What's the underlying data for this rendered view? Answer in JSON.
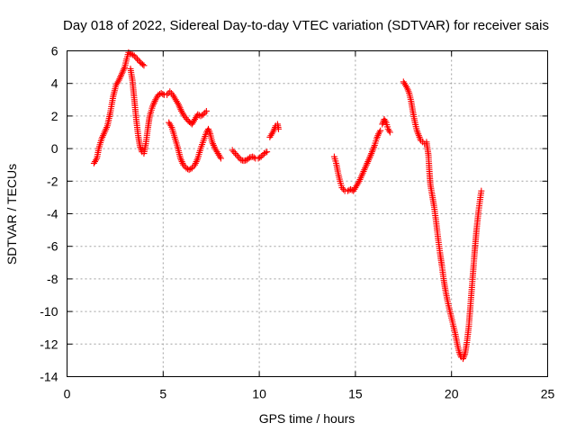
{
  "chart_data": {
    "type": "scatter",
    "title": "Day 018 of 2022, Sidereal Day-to-day VTEC variation (SDTVAR) for receiver sais",
    "xlabel": "GPS time / hours",
    "ylabel": "SDTVAR / TECUs",
    "xlim": [
      0,
      25
    ],
    "ylim": [
      -14,
      6
    ],
    "xticks": [
      0,
      5,
      10,
      15,
      20,
      25
    ],
    "yticks": [
      -14,
      -12,
      -10,
      -8,
      -6,
      -4,
      -2,
      0,
      2,
      4,
      6
    ],
    "xtick_labels": [
      "0",
      "5",
      "10",
      "15",
      "20",
      "25"
    ],
    "ytick_labels": [
      "-14",
      "-12",
      "-10",
      "-8",
      "-6",
      "-4",
      "-2",
      "0",
      "2",
      "4",
      "6"
    ],
    "grid": true,
    "legend": "none",
    "marker": "plus",
    "color": "#ff0000",
    "segments": [
      [
        [
          1.4,
          -0.9
        ],
        [
          1.55,
          -0.6
        ],
        [
          1.65,
          0.0
        ],
        [
          1.8,
          0.6
        ],
        [
          1.95,
          1.0
        ],
        [
          2.1,
          1.4
        ],
        [
          2.25,
          2.2
        ],
        [
          2.4,
          3.2
        ],
        [
          2.55,
          3.9
        ],
        [
          2.7,
          4.2
        ],
        [
          2.85,
          4.6
        ],
        [
          3.0,
          5.0
        ],
        [
          3.1,
          5.5
        ],
        [
          3.2,
          5.9
        ],
        [
          3.35,
          5.8
        ],
        [
          3.5,
          5.7
        ],
        [
          3.65,
          5.5
        ],
        [
          3.8,
          5.3
        ],
        [
          4.0,
          5.1
        ]
      ],
      [
        [
          3.3,
          4.9
        ],
        [
          3.4,
          4.2
        ],
        [
          3.5,
          3.0
        ],
        [
          3.6,
          1.8
        ],
        [
          3.7,
          0.8
        ],
        [
          3.8,
          0.1
        ],
        [
          3.9,
          -0.2
        ],
        [
          4.0,
          -0.3
        ],
        [
          4.1,
          0.3
        ],
        [
          4.2,
          1.2
        ],
        [
          4.3,
          2.0
        ],
        [
          4.45,
          2.6
        ],
        [
          4.6,
          3.0
        ],
        [
          4.75,
          3.3
        ],
        [
          4.9,
          3.4
        ],
        [
          5.05,
          3.3
        ],
        [
          5.2,
          3.3
        ],
        [
          5.35,
          3.5
        ],
        [
          5.5,
          3.3
        ],
        [
          5.65,
          3.0
        ],
        [
          5.8,
          2.7
        ],
        [
          5.95,
          2.3
        ],
        [
          6.1,
          2.0
        ],
        [
          6.3,
          1.7
        ],
        [
          6.5,
          1.5
        ],
        [
          6.65,
          1.8
        ],
        [
          6.8,
          2.1
        ],
        [
          6.95,
          2.0
        ],
        [
          7.1,
          2.1
        ],
        [
          7.25,
          2.3
        ]
      ],
      [
        [
          5.3,
          1.6
        ],
        [
          5.45,
          1.3
        ],
        [
          5.6,
          0.7
        ],
        [
          5.75,
          0.1
        ],
        [
          5.9,
          -0.6
        ],
        [
          6.05,
          -1.0
        ],
        [
          6.2,
          -1.2
        ],
        [
          6.35,
          -1.3
        ],
        [
          6.5,
          -1.2
        ],
        [
          6.65,
          -1.0
        ],
        [
          6.8,
          -0.6
        ],
        [
          6.95,
          0.0
        ],
        [
          7.1,
          0.5
        ],
        [
          7.25,
          1.0
        ],
        [
          7.35,
          1.2
        ],
        [
          7.45,
          0.9
        ],
        [
          7.55,
          0.4
        ],
        [
          7.7,
          0.0
        ],
        [
          7.85,
          -0.3
        ],
        [
          8.0,
          -0.6
        ]
      ],
      [
        [
          8.6,
          -0.1
        ],
        [
          8.75,
          -0.3
        ],
        [
          8.9,
          -0.5
        ],
        [
          9.05,
          -0.7
        ],
        [
          9.2,
          -0.75
        ],
        [
          9.35,
          -0.7
        ],
        [
          9.5,
          -0.55
        ],
        [
          9.65,
          -0.5
        ],
        [
          9.8,
          -0.6
        ],
        [
          9.95,
          -0.6
        ],
        [
          10.1,
          -0.5
        ],
        [
          10.25,
          -0.3
        ],
        [
          10.4,
          -0.2
        ]
      ],
      [
        [
          10.55,
          0.7
        ],
        [
          10.65,
          0.9
        ],
        [
          10.75,
          1.1
        ],
        [
          10.85,
          1.4
        ],
        [
          10.95,
          1.5
        ],
        [
          11.0,
          1.2
        ]
      ],
      [
        [
          13.9,
          -0.5
        ],
        [
          14.0,
          -0.9
        ],
        [
          14.1,
          -1.5
        ],
        [
          14.2,
          -2.0
        ],
        [
          14.3,
          -2.4
        ],
        [
          14.45,
          -2.6
        ],
        [
          14.6,
          -2.6
        ],
        [
          14.75,
          -2.5
        ],
        [
          14.9,
          -2.6
        ],
        [
          15.05,
          -2.3
        ],
        [
          15.2,
          -2.0
        ],
        [
          15.35,
          -1.6
        ],
        [
          15.5,
          -1.2
        ],
        [
          15.65,
          -0.8
        ],
        [
          15.8,
          -0.4
        ],
        [
          15.9,
          -0.1
        ],
        [
          16.0,
          0.2
        ],
        [
          16.1,
          0.6
        ],
        [
          16.2,
          0.9
        ],
        [
          16.3,
          1.1
        ]
      ],
      [
        [
          16.4,
          1.5
        ],
        [
          16.5,
          1.8
        ],
        [
          16.6,
          1.6
        ],
        [
          16.7,
          1.2
        ],
        [
          16.8,
          1.0
        ]
      ],
      [
        [
          17.5,
          4.1
        ],
        [
          17.6,
          3.9
        ],
        [
          17.7,
          3.7
        ],
        [
          17.8,
          3.4
        ],
        [
          17.9,
          2.9
        ],
        [
          18.0,
          2.2
        ],
        [
          18.1,
          1.6
        ],
        [
          18.2,
          1.1
        ],
        [
          18.3,
          0.8
        ],
        [
          18.4,
          0.5
        ],
        [
          18.5,
          0.4
        ],
        [
          18.6,
          0.3
        ],
        [
          18.7,
          0.4
        ],
        [
          18.8,
          -0.4
        ],
        [
          18.85,
          -1.4
        ],
        [
          18.9,
          -2.2
        ],
        [
          19.0,
          -2.9
        ],
        [
          19.1,
          -3.6
        ],
        [
          19.2,
          -4.5
        ],
        [
          19.3,
          -5.5
        ],
        [
          19.4,
          -6.4
        ],
        [
          19.5,
          -7.2
        ],
        [
          19.6,
          -8.1
        ],
        [
          19.7,
          -8.8
        ],
        [
          19.8,
          -9.4
        ],
        [
          19.9,
          -9.9
        ],
        [
          20.0,
          -10.4
        ],
        [
          20.1,
          -10.9
        ],
        [
          20.2,
          -11.4
        ],
        [
          20.3,
          -12.0
        ],
        [
          20.4,
          -12.5
        ],
        [
          20.5,
          -12.8
        ],
        [
          20.6,
          -12.9
        ],
        [
          20.7,
          -12.6
        ],
        [
          20.8,
          -11.9
        ],
        [
          20.9,
          -10.9
        ],
        [
          21.0,
          -9.4
        ],
        [
          21.1,
          -7.9
        ],
        [
          21.2,
          -6.4
        ],
        [
          21.3,
          -5.0
        ],
        [
          21.4,
          -3.9
        ],
        [
          21.5,
          -3.0
        ],
        [
          21.55,
          -2.6
        ]
      ]
    ]
  }
}
